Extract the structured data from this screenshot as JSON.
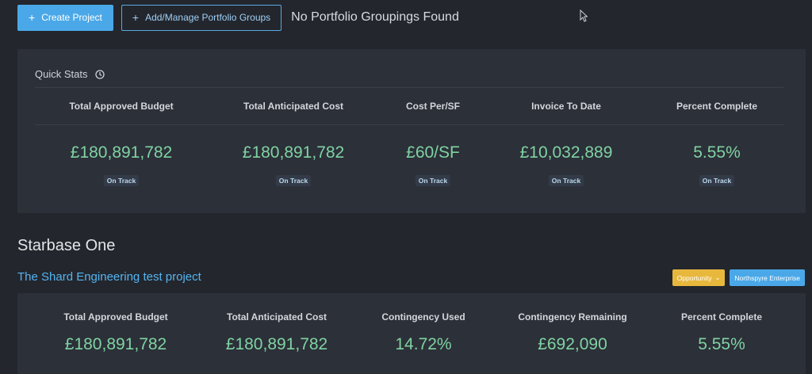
{
  "toolbar": {
    "create_project_label": "Create Project",
    "manage_groups_label": "Add/Manage Portfolio Groups",
    "status_text": "No Portfolio Groupings Found"
  },
  "quick_stats": {
    "title": "Quick Stats",
    "stats": [
      {
        "label": "Total Approved Budget",
        "value": "£180,891,782",
        "badge": "On Track"
      },
      {
        "label": "Total Anticipated Cost",
        "value": "£180,891,782",
        "badge": "On Track"
      },
      {
        "label": "Cost Per/SF",
        "value": "£60/SF",
        "badge": "On Track"
      },
      {
        "label": "Invoice To Date",
        "value": "£10,032,889",
        "badge": "On Track"
      },
      {
        "label": "Percent Complete",
        "value": "5.55%",
        "badge": "On Track"
      }
    ]
  },
  "portfolio": {
    "title": "Starbase One",
    "project": {
      "name": "The Shard Engineering test project",
      "stage_tag": "Opportunity",
      "org_tag": "Northspyre Enterprise",
      "stats": [
        {
          "label": "Total Approved Budget",
          "value": "£180,891,782"
        },
        {
          "label": "Total Anticipated Cost",
          "value": "£180,891,782"
        },
        {
          "label": "Contingency Used",
          "value": "14.72%"
        },
        {
          "label": "Contingency Remaining",
          "value": "£692,090"
        },
        {
          "label": "Percent Complete",
          "value": "5.55%"
        }
      ]
    }
  },
  "colors": {
    "accent": "#4aa8e8",
    "positive_value": "#7fd3a2",
    "opportunity": "#e8b83d"
  }
}
